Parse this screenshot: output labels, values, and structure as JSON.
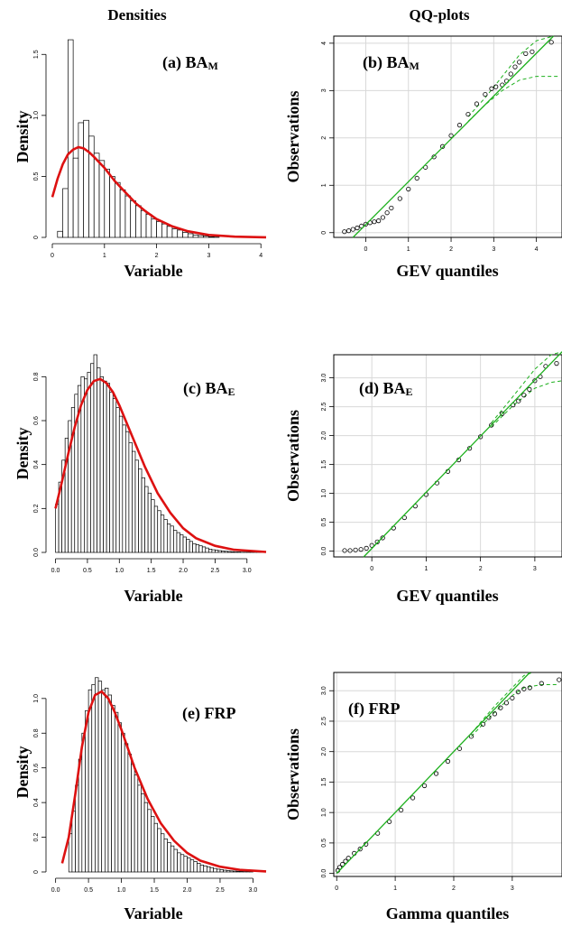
{
  "titles": {
    "left": "Densities",
    "right": "QQ-plots"
  },
  "chart_data": [
    {
      "id": "a",
      "type": "bar",
      "panel_label": "(a) BA",
      "panel_sub": "M",
      "xlabel": "Variable",
      "ylabel": "Density",
      "xlim": [
        0,
        4.1
      ],
      "ylim": [
        0,
        1.65
      ],
      "xticks": [
        0,
        1,
        2,
        3,
        4
      ],
      "yticks": [
        0,
        0.5,
        1.0,
        1.5
      ],
      "yticklabels": [
        "0",
        "0.5",
        "1.0",
        "1.5"
      ],
      "bins": {
        "start": 0.1,
        "width": 0.1,
        "values": [
          0.05,
          0.4,
          1.62,
          0.65,
          0.94,
          0.96,
          0.83,
          0.69,
          0.63,
          0.56,
          0.5,
          0.45,
          0.39,
          0.34,
          0.3,
          0.26,
          0.22,
          0.19,
          0.15,
          0.13,
          0.11,
          0.09,
          0.07,
          0.06,
          0.04,
          0.03,
          0.02,
          0.015,
          0.01,
          0.005,
          0.003
        ]
      },
      "curve": {
        "name": "density",
        "color": "#dd1111",
        "x": [
          0,
          0.1,
          0.2,
          0.3,
          0.4,
          0.5,
          0.6,
          0.7,
          0.8,
          1.0,
          1.2,
          1.4,
          1.6,
          1.8,
          2.0,
          2.3,
          2.6,
          3.0,
          3.5,
          4.1
        ],
        "y": [
          0.33,
          0.48,
          0.6,
          0.68,
          0.72,
          0.74,
          0.73,
          0.7,
          0.66,
          0.57,
          0.46,
          0.37,
          0.28,
          0.21,
          0.15,
          0.09,
          0.05,
          0.02,
          0.006,
          0.001
        ]
      }
    },
    {
      "id": "b",
      "type": "scatter",
      "panel_label": "(b) BA",
      "panel_sub": "M",
      "xlabel": "GEV quantiles",
      "ylabel": "Observations",
      "xlim": [
        -0.75,
        4.6
      ],
      "ylim": [
        -0.1,
        4.15
      ],
      "xticks": [
        0,
        1,
        2,
        3,
        4
      ],
      "yticks": [
        0,
        1,
        2,
        3,
        4
      ],
      "yticklabels": [
        "0",
        "1",
        "2",
        "3",
        "4"
      ],
      "points": {
        "x": [
          -0.5,
          -0.4,
          -0.3,
          -0.2,
          -0.1,
          0.0,
          0.1,
          0.2,
          0.3,
          0.4,
          0.5,
          0.6,
          0.8,
          1.0,
          1.2,
          1.4,
          1.6,
          1.8,
          2.0,
          2.2,
          2.4,
          2.6,
          2.8,
          2.95,
          3.05,
          3.2,
          3.3,
          3.4,
          3.5,
          3.6,
          3.75,
          3.9,
          4.35
        ],
        "y": [
          0.02,
          0.04,
          0.07,
          0.1,
          0.14,
          0.18,
          0.21,
          0.23,
          0.25,
          0.32,
          0.42,
          0.52,
          0.72,
          0.92,
          1.15,
          1.38,
          1.6,
          1.82,
          2.05,
          2.27,
          2.5,
          2.72,
          2.92,
          3.04,
          3.08,
          3.12,
          3.2,
          3.35,
          3.5,
          3.6,
          3.78,
          3.82,
          4.02
        ]
      },
      "refline": {
        "x": [
          -0.3,
          4.4
        ],
        "y": [
          -0.1,
          4.15
        ]
      },
      "envelope_upper": {
        "x": [
          2.4,
          2.8,
          3.2,
          3.6,
          4.0,
          4.4
        ],
        "y": [
          2.45,
          2.85,
          3.3,
          3.75,
          4.05,
          4.15
        ]
      },
      "envelope_lower": {
        "x": [
          2.4,
          2.8,
          3.2,
          3.6,
          4.0,
          4.5
        ],
        "y": [
          2.35,
          2.7,
          3.0,
          3.22,
          3.3,
          3.3
        ]
      }
    },
    {
      "id": "c",
      "type": "bar",
      "panel_label": "(c) BA",
      "panel_sub": "E",
      "xlabel": "Variable",
      "ylabel": "Density",
      "xlim": [
        -0.05,
        3.3
      ],
      "ylim": [
        0,
        0.9
      ],
      "xticks": [
        0.0,
        0.5,
        1.0,
        1.5,
        2.0,
        2.5,
        3.0
      ],
      "yticks": [
        0,
        0.2,
        0.4,
        0.6,
        0.8
      ],
      "yticklabels": [
        "0.0",
        "0.2",
        "0.4",
        "0.6",
        "0.8"
      ],
      "bins": {
        "start": 0.0,
        "width": 0.05,
        "values": [
          0.22,
          0.32,
          0.42,
          0.52,
          0.6,
          0.66,
          0.72,
          0.76,
          0.8,
          0.79,
          0.82,
          0.86,
          0.9,
          0.84,
          0.8,
          0.78,
          0.77,
          0.73,
          0.7,
          0.66,
          0.62,
          0.58,
          0.55,
          0.5,
          0.46,
          0.42,
          0.38,
          0.34,
          0.3,
          0.27,
          0.24,
          0.21,
          0.19,
          0.17,
          0.15,
          0.13,
          0.12,
          0.1,
          0.09,
          0.08,
          0.07,
          0.06,
          0.05,
          0.04,
          0.035,
          0.03,
          0.025,
          0.02,
          0.015,
          0.012,
          0.01,
          0.008,
          0.006,
          0.005,
          0.004,
          0.003,
          0.002,
          0.002,
          0.001,
          0.001,
          0.001,
          0.001,
          0.001,
          0.001,
          0.001
        ]
      },
      "curve": {
        "name": "density",
        "color": "#dd1111",
        "x": [
          0,
          0.1,
          0.2,
          0.3,
          0.4,
          0.5,
          0.6,
          0.7,
          0.8,
          0.9,
          1.0,
          1.2,
          1.4,
          1.6,
          1.8,
          2.0,
          2.2,
          2.5,
          2.8,
          3.3
        ],
        "y": [
          0.2,
          0.32,
          0.45,
          0.57,
          0.67,
          0.74,
          0.78,
          0.79,
          0.77,
          0.73,
          0.67,
          0.53,
          0.39,
          0.27,
          0.18,
          0.11,
          0.065,
          0.03,
          0.012,
          0.002
        ]
      }
    },
    {
      "id": "d",
      "type": "scatter",
      "panel_label": "(d) BA",
      "panel_sub": "E",
      "xlabel": "GEV quantiles",
      "ylabel": "Observations",
      "xlim": [
        -0.7,
        3.5
      ],
      "ylim": [
        -0.1,
        3.4
      ],
      "xticks": [
        0,
        1,
        2,
        3
      ],
      "yticks": [
        0,
        0.5,
        1.0,
        1.5,
        2.0,
        2.5,
        3.0
      ],
      "yticklabels": [
        "0.0",
        "0.5",
        "1.0",
        "1.5",
        "2.0",
        "2.5",
        "3.0"
      ],
      "points": {
        "x": [
          -0.5,
          -0.4,
          -0.3,
          -0.2,
          -0.1,
          0.0,
          0.1,
          0.2,
          0.4,
          0.6,
          0.8,
          1.0,
          1.2,
          1.4,
          1.6,
          1.8,
          2.0,
          2.2,
          2.4,
          2.6,
          2.7,
          2.8,
          2.9,
          3.0,
          3.1,
          3.2,
          3.4
        ],
        "y": [
          0.01,
          0.01,
          0.02,
          0.03,
          0.05,
          0.1,
          0.16,
          0.23,
          0.4,
          0.58,
          0.78,
          0.98,
          1.18,
          1.38,
          1.58,
          1.78,
          1.98,
          2.18,
          2.38,
          2.53,
          2.6,
          2.7,
          2.8,
          2.95,
          3.02,
          3.2,
          3.25
        ]
      },
      "refline": {
        "x": [
          -0.15,
          3.5
        ],
        "y": [
          -0.1,
          3.45
        ]
      },
      "envelope_upper": {
        "x": [
          2.2,
          2.6,
          3.0,
          3.3,
          3.5
        ],
        "y": [
          2.22,
          2.68,
          3.15,
          3.4,
          3.45
        ]
      },
      "envelope_lower": {
        "x": [
          2.2,
          2.6,
          3.0,
          3.3,
          3.5
        ],
        "y": [
          2.15,
          2.52,
          2.82,
          2.92,
          2.95
        ]
      }
    },
    {
      "id": "e",
      "type": "bar",
      "panel_label": "(e) FRP",
      "panel_sub": "",
      "xlabel": "Variable",
      "ylabel": "Density",
      "xlim": [
        -0.05,
        3.2
      ],
      "ylim": [
        0,
        1.15
      ],
      "xticks": [
        0.0,
        0.5,
        1.0,
        1.5,
        2.0,
        2.5,
        3.0
      ],
      "yticks": [
        0,
        0.2,
        0.4,
        0.6,
        0.8,
        1.0
      ],
      "yticklabels": [
        "0",
        "0.2",
        "0.4",
        "0.6",
        "0.8",
        "1.0"
      ],
      "bins": {
        "start": 0.2,
        "width": 0.05,
        "values": [
          0.22,
          0.35,
          0.5,
          0.65,
          0.8,
          0.93,
          1.05,
          1.08,
          1.12,
          1.1,
          1.05,
          1.06,
          1.02,
          0.96,
          0.92,
          0.86,
          0.8,
          0.74,
          0.68,
          0.62,
          0.56,
          0.5,
          0.45,
          0.4,
          0.36,
          0.32,
          0.28,
          0.25,
          0.22,
          0.19,
          0.17,
          0.15,
          0.13,
          0.11,
          0.1,
          0.09,
          0.08,
          0.07,
          0.06,
          0.05,
          0.04,
          0.035,
          0.03,
          0.025,
          0.02,
          0.016,
          0.013,
          0.01,
          0.008,
          0.006,
          0.005,
          0.004,
          0.003,
          0.002,
          0.002,
          0.001
        ]
      },
      "curve": {
        "name": "density",
        "color": "#dd1111",
        "x": [
          0.1,
          0.2,
          0.3,
          0.4,
          0.5,
          0.6,
          0.7,
          0.8,
          0.9,
          1.0,
          1.2,
          1.4,
          1.6,
          1.8,
          2.0,
          2.2,
          2.5,
          2.8,
          3.2
        ],
        "y": [
          0.05,
          0.2,
          0.45,
          0.72,
          0.92,
          1.02,
          1.04,
          1.0,
          0.92,
          0.82,
          0.6,
          0.42,
          0.28,
          0.18,
          0.11,
          0.065,
          0.03,
          0.012,
          0.003
        ]
      }
    },
    {
      "id": "f",
      "type": "scatter",
      "panel_label": "(f) FRP",
      "panel_sub": "",
      "xlabel": "Gamma quantiles",
      "ylabel": "Observations",
      "xlim": [
        -0.05,
        3.85
      ],
      "ylim": [
        -0.05,
        3.3
      ],
      "xticks": [
        0,
        1,
        2,
        3
      ],
      "yticks": [
        0,
        0.5,
        1.0,
        1.5,
        2.0,
        2.5,
        3.0
      ],
      "yticklabels": [
        "0.0",
        "0.5",
        "1.0",
        "1.5",
        "2.0",
        "2.5",
        "3.0"
      ],
      "points": {
        "x": [
          0.02,
          0.05,
          0.1,
          0.15,
          0.2,
          0.3,
          0.4,
          0.5,
          0.7,
          0.9,
          1.1,
          1.3,
          1.5,
          1.7,
          1.9,
          2.1,
          2.3,
          2.5,
          2.6,
          2.7,
          2.8,
          2.9,
          3.0,
          3.1,
          3.2,
          3.3,
          3.5,
          3.8
        ],
        "y": [
          0.05,
          0.1,
          0.15,
          0.2,
          0.25,
          0.33,
          0.4,
          0.48,
          0.66,
          0.85,
          1.04,
          1.24,
          1.44,
          1.64,
          1.84,
          2.05,
          2.25,
          2.45,
          2.56,
          2.62,
          2.72,
          2.8,
          2.88,
          2.98,
          3.03,
          3.05,
          3.12,
          3.18
        ]
      },
      "refline": {
        "x": [
          0.0,
          3.3
        ],
        "y": [
          0.0,
          3.3
        ]
      },
      "envelope_upper": {
        "x": [
          2.3,
          2.7,
          3.0,
          3.2,
          3.35
        ],
        "y": [
          2.3,
          2.75,
          3.05,
          3.25,
          3.3
        ]
      },
      "envelope_lower": {
        "x": [
          2.3,
          2.7,
          3.0,
          3.2,
          3.5,
          3.8
        ],
        "y": [
          2.25,
          2.65,
          2.92,
          3.05,
          3.1,
          3.1
        ]
      }
    }
  ]
}
